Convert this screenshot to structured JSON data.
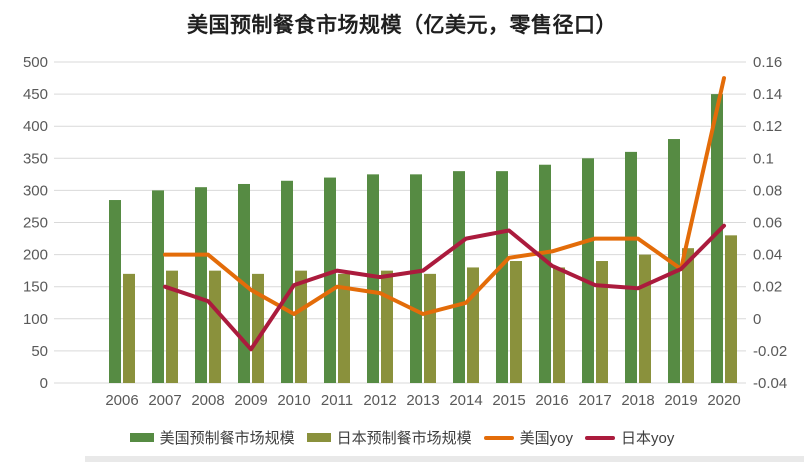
{
  "title": "美国预制餐食市场规模（亿美元，零售径口）",
  "chart_data": {
    "type": "combo",
    "categories": [
      "2006",
      "2007",
      "2008",
      "2009",
      "2010",
      "2011",
      "2012",
      "2013",
      "2014",
      "2015",
      "2016",
      "2017",
      "2018",
      "2019",
      "2020"
    ],
    "left_axis": {
      "min": 0,
      "max": 500,
      "step": 50,
      "tick_labels": [
        "0",
        "50",
        "100",
        "150",
        "200",
        "250",
        "300",
        "350",
        "400",
        "450",
        "500"
      ]
    },
    "right_axis": {
      "min": -0.04,
      "max": 0.16,
      "step": 0.02,
      "tick_labels": [
        "-0.04",
        "-0.02",
        "0",
        "0.02",
        "0.04",
        "0.06",
        "0.08",
        "0.1",
        "0.12",
        "0.14",
        "0.16"
      ]
    },
    "grid": true,
    "legend_position": "bottom",
    "series": [
      {
        "name": "美国预制餐市场规模",
        "type": "bar",
        "axis": "left",
        "color": "#568b43",
        "values": [
          285,
          300,
          305,
          310,
          315,
          320,
          325,
          325,
          330,
          330,
          340,
          350,
          360,
          380,
          450
        ]
      },
      {
        "name": "日本预制餐市场规模",
        "type": "bar",
        "axis": "left",
        "color": "#8a913c",
        "values": [
          170,
          175,
          175,
          170,
          175,
          170,
          175,
          170,
          180,
          190,
          180,
          190,
          200,
          210,
          230
        ]
      },
      {
        "name": "美国yoy",
        "type": "line",
        "axis": "right",
        "color": "#e36c09",
        "values": [
          null,
          0.04,
          0.04,
          0.018,
          0.003,
          0.02,
          0.016,
          0.003,
          0.01,
          0.038,
          0.042,
          0.05,
          0.05,
          0.031,
          0.15
        ]
      },
      {
        "name": "日本yoy",
        "type": "line",
        "axis": "right",
        "color": "#ab1b3d",
        "values": [
          null,
          0.02,
          0.011,
          -0.019,
          0.021,
          0.03,
          0.026,
          0.03,
          0.05,
          0.055,
          0.033,
          0.021,
          0.019,
          0.031,
          0.058
        ]
      }
    ]
  },
  "colors": {
    "background": "#ffffff",
    "gridline": "#d9d9d9",
    "axis_text": "#595959",
    "title_text": "#1f1f1f",
    "legend_text": "#404040",
    "bottom_strip": "#e9e9e9"
  }
}
